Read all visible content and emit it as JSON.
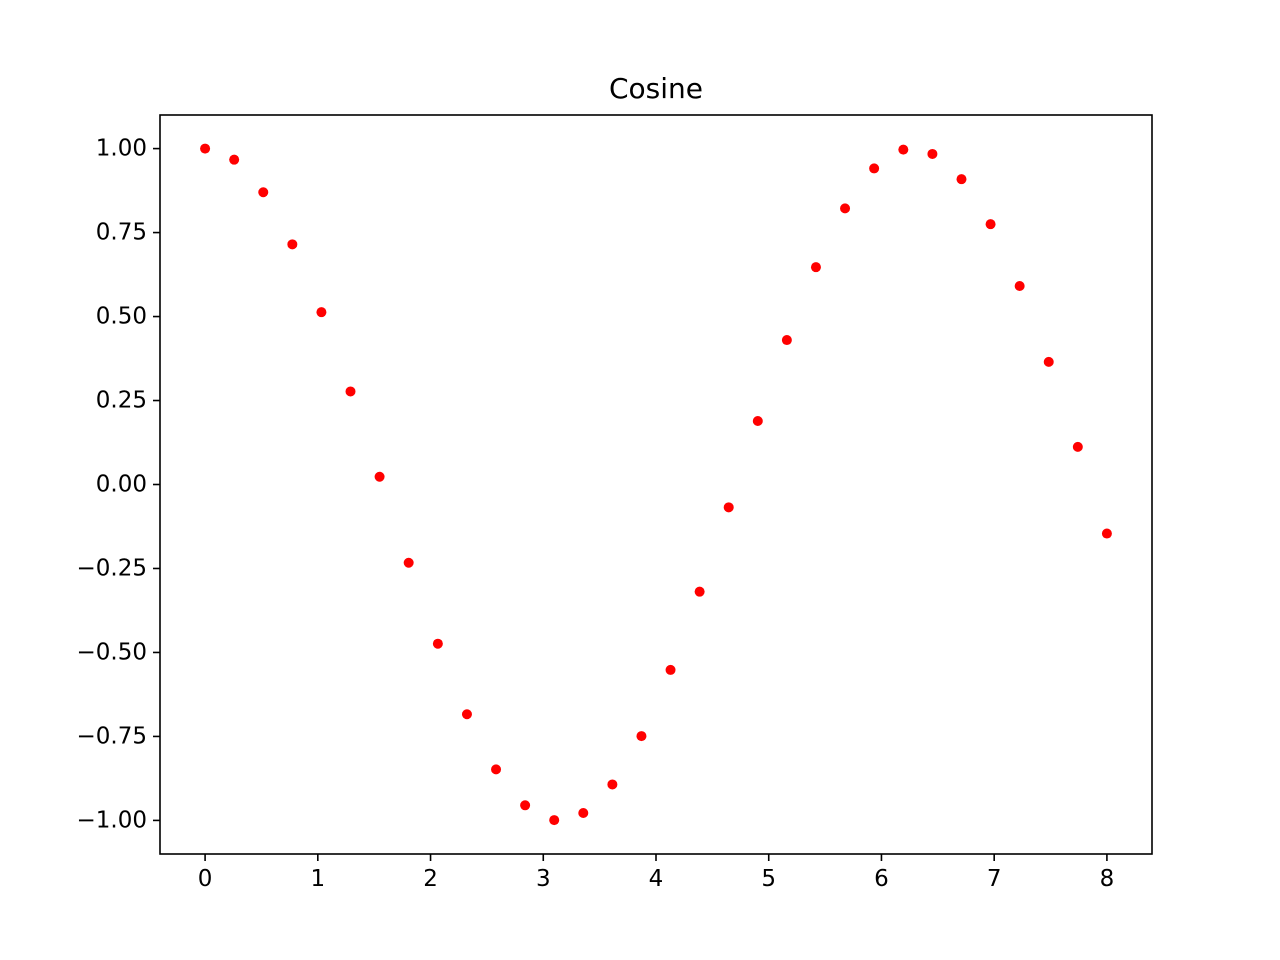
{
  "chart_data": {
    "type": "scatter",
    "title": "Cosine",
    "xlabel": "",
    "ylabel": "",
    "xlim": [
      -0.4,
      8.4
    ],
    "ylim": [
      -1.1,
      1.1
    ],
    "grid": false,
    "x_ticks": [
      0,
      1,
      2,
      3,
      4,
      5,
      6,
      7,
      8
    ],
    "x_tick_labels": [
      "0",
      "1",
      "2",
      "3",
      "4",
      "5",
      "6",
      "7",
      "8"
    ],
    "y_ticks": [
      1.0,
      0.75,
      0.5,
      0.25,
      0.0,
      -0.25,
      -0.5,
      -0.75,
      -1.0
    ],
    "y_tick_labels": [
      "1.00",
      "0.75",
      "0.50",
      "0.25",
      "0.00",
      "−0.25",
      "−0.50",
      "−0.75",
      "−1.00"
    ],
    "marker_color": "#ff0000",
    "series": [
      {
        "x": [
          0.0,
          0.258,
          0.516,
          0.774,
          1.032,
          1.29,
          1.548,
          1.806,
          2.065,
          2.323,
          2.581,
          2.839,
          3.097,
          3.355,
          3.613,
          3.871,
          4.129,
          4.387,
          4.645,
          4.903,
          5.161,
          5.419,
          5.677,
          5.935,
          6.194,
          6.452,
          6.71,
          6.968,
          7.226,
          7.484,
          7.742,
          8.0
        ],
        "y": [
          1.0,
          0.967,
          0.87,
          0.715,
          0.513,
          0.277,
          0.023,
          -0.233,
          -0.474,
          -0.684,
          -0.848,
          -0.955,
          -0.999,
          -0.978,
          -0.893,
          -0.749,
          -0.552,
          -0.319,
          -0.068,
          0.189,
          0.43,
          0.647,
          0.822,
          0.941,
          0.997,
          0.984,
          0.909,
          0.775,
          0.591,
          0.365,
          0.112,
          -0.146
        ]
      }
    ]
  }
}
